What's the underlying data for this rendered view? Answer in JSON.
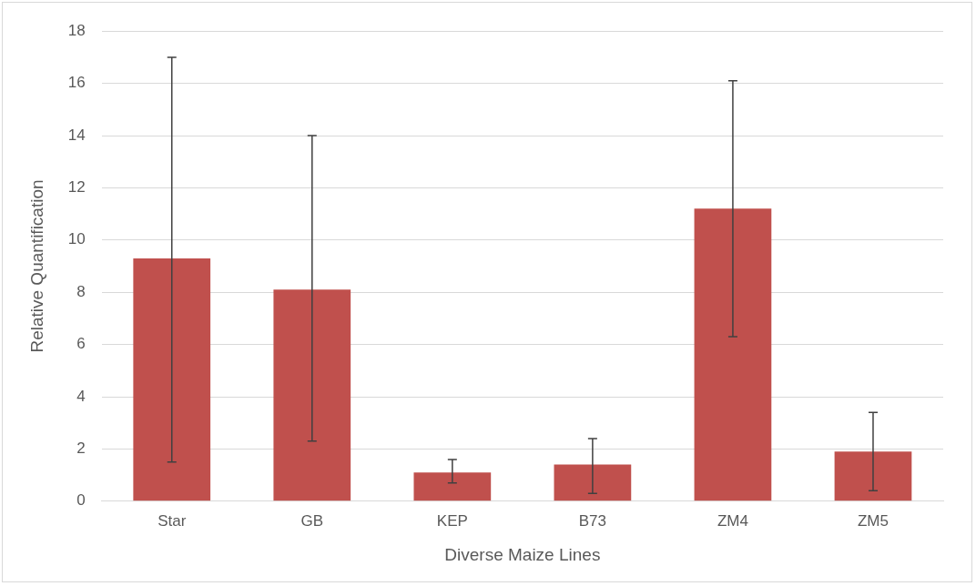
{
  "chart_data": {
    "type": "bar",
    "xlabel": "Diverse Maize Lines",
    "ylabel": "Relative Quantification",
    "categories": [
      "Star",
      "GB",
      "KEP",
      "B73",
      "ZM4",
      "ZM5"
    ],
    "values": [
      9.3,
      8.1,
      1.1,
      1.4,
      11.2,
      1.9
    ],
    "errors": [
      [
        1.5,
        17.0
      ],
      [
        2.3,
        14.0
      ],
      [
        0.7,
        1.6
      ],
      [
        0.3,
        2.4
      ],
      [
        6.3,
        16.1
      ],
      [
        0.4,
        3.4
      ]
    ],
    "color": "#c0504d",
    "ylim": [
      0,
      18
    ],
    "yticks": [
      0,
      2,
      4,
      6,
      8,
      10,
      12,
      14,
      16,
      18
    ],
    "grid": "y",
    "legend": false
  }
}
